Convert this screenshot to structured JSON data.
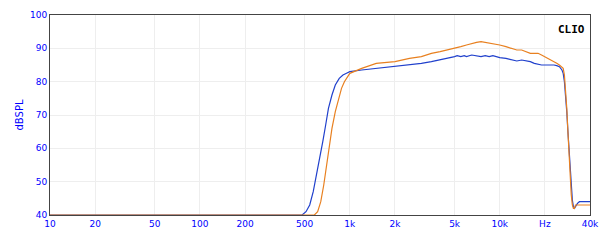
{
  "chart_data": {
    "type": "line",
    "title": "CLIO",
    "y_label": "dBSPL",
    "log": "x",
    "grid": true,
    "xlim": [
      10,
      40000
    ],
    "ylim": [
      40,
      100
    ],
    "xticks": [
      10,
      20,
      50,
      100,
      200,
      500,
      {
        "value": 1000,
        "label": "1k"
      },
      {
        "value": 2000,
        "label": "2k"
      },
      {
        "value": 5000,
        "label": "5k"
      },
      {
        "value": 10000,
        "label": "10k"
      },
      {
        "value": 20000,
        "label": "Hz"
      },
      {
        "value": 40000,
        "label": "40k"
      }
    ],
    "yticks": [
      40,
      50,
      60,
      70,
      80,
      90,
      100
    ],
    "series": [
      {
        "color": "#2040cc",
        "x": [
          10,
          480,
          510,
          540,
          570,
          600,
          630,
          660,
          690,
          720,
          760,
          800,
          850,
          900,
          950,
          1000,
          1200,
          1500,
          2000,
          2500,
          3000,
          3500,
          4000,
          4500,
          5000,
          5200,
          5500,
          5800,
          6000,
          6500,
          7000,
          7500,
          8000,
          8500,
          9000,
          9500,
          10000,
          11000,
          12000,
          13000,
          14000,
          15000,
          16000,
          17000,
          18000,
          19000,
          20000,
          21000,
          22000,
          23000,
          24000,
          25000,
          26000,
          26500,
          27000,
          27500,
          28000,
          28500,
          29000,
          29500,
          30000,
          30500,
          31000,
          31500,
          32000,
          33000,
          34000,
          40000
        ],
        "values": [
          40,
          40,
          41,
          43,
          47,
          52,
          57,
          62,
          67,
          72,
          76,
          79,
          81,
          82,
          82.5,
          83,
          83.5,
          84,
          84.5,
          85,
          85.5,
          86,
          86.5,
          87,
          87.5,
          87.8,
          87.5,
          87.8,
          87.5,
          88,
          87.8,
          87.5,
          87.8,
          87.5,
          87.8,
          87.5,
          87.2,
          87,
          86.5,
          86.2,
          86.5,
          86.2,
          86,
          85.5,
          85.2,
          85,
          85,
          85,
          85.2,
          85,
          84.8,
          84.5,
          83.5,
          82.5,
          80,
          76,
          71,
          65,
          59,
          53,
          48,
          44.5,
          42.5,
          42,
          42.5,
          43.5,
          44,
          44
        ]
      },
      {
        "color": "#e88020",
        "x": [
          10,
          580,
          610,
          640,
          670,
          700,
          730,
          760,
          800,
          840,
          880,
          920,
          960,
          1000,
          1200,
          1500,
          2000,
          2500,
          3000,
          3500,
          4000,
          4500,
          5000,
          5500,
          6000,
          6500,
          7000,
          7500,
          8000,
          8500,
          9000,
          9500,
          10000,
          11000,
          12000,
          13000,
          14000,
          15000,
          16000,
          17000,
          18000,
          19000,
          20000,
          21000,
          22000,
          23000,
          24000,
          25000,
          26000,
          26500,
          27000,
          27500,
          28000,
          28500,
          29000,
          29500,
          30000,
          30500,
          31000,
          31500,
          32000,
          40000
        ],
        "values": [
          40,
          40,
          41,
          44,
          49,
          55,
          61,
          66,
          71,
          75,
          78,
          80,
          81.5,
          82.5,
          84,
          85.5,
          86,
          87,
          87.5,
          88.5,
          89,
          89.5,
          90,
          90.5,
          91,
          91.5,
          91.8,
          92,
          91.8,
          91.5,
          91.5,
          91.2,
          91,
          90.5,
          90,
          89.5,
          89.5,
          89,
          88.5,
          88.5,
          88.5,
          88,
          87.5,
          87,
          86.5,
          86,
          85.5,
          85,
          84.5,
          84,
          82,
          78,
          72,
          65,
          57,
          50,
          46,
          43,
          42,
          42,
          43,
          43
        ]
      }
    ]
  }
}
